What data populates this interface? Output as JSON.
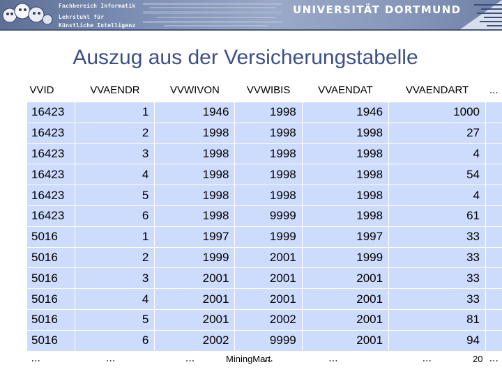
{
  "header": {
    "dept_line1": "Fachbereich Informatik",
    "dept_line2": "Lehrstuhl für",
    "dept_line3": "Künstliche Intelligenz",
    "university": "UNIVERSITÄT DORTMUND",
    "colors": {
      "banner": "#7a8cb2",
      "title": "#3d4f8a",
      "cell": "#cddcfc"
    }
  },
  "slide": {
    "title": "Auszug aus der Versicherungstabelle"
  },
  "table": {
    "columns": [
      "VVID",
      "VVAENDR",
      "VVWIVON",
      "VVWIBIS",
      "VVAENDAT",
      "VVAENDART",
      "..."
    ],
    "rows": [
      [
        "16423",
        "1",
        "1946",
        "1998",
        "1946",
        "1000"
      ],
      [
        "16423",
        "2",
        "1998",
        "1998",
        "1998",
        "27"
      ],
      [
        "16423",
        "3",
        "1998",
        "1998",
        "1998",
        "4"
      ],
      [
        "16423",
        "4",
        "1998",
        "1998",
        "1998",
        "54"
      ],
      [
        "16423",
        "5",
        "1998",
        "1998",
        "1998",
        "4"
      ],
      [
        "16423",
        "6",
        "1998",
        "9999",
        "1998",
        "61"
      ],
      [
        "5016",
        "1",
        "1997",
        "1999",
        "1997",
        "33"
      ],
      [
        "5016",
        "2",
        "1999",
        "2001",
        "1999",
        "33"
      ],
      [
        "5016",
        "3",
        "2001",
        "2001",
        "2001",
        "33"
      ],
      [
        "5016",
        "4",
        "2001",
        "2001",
        "2001",
        "33"
      ],
      [
        "5016",
        "5",
        "2001",
        "2002",
        "2001",
        "81"
      ],
      [
        "5016",
        "6",
        "2002",
        "9999",
        "2001",
        "94"
      ]
    ],
    "ellipsis": "..."
  },
  "footer": {
    "source": "MiningMart",
    "page": "20"
  }
}
